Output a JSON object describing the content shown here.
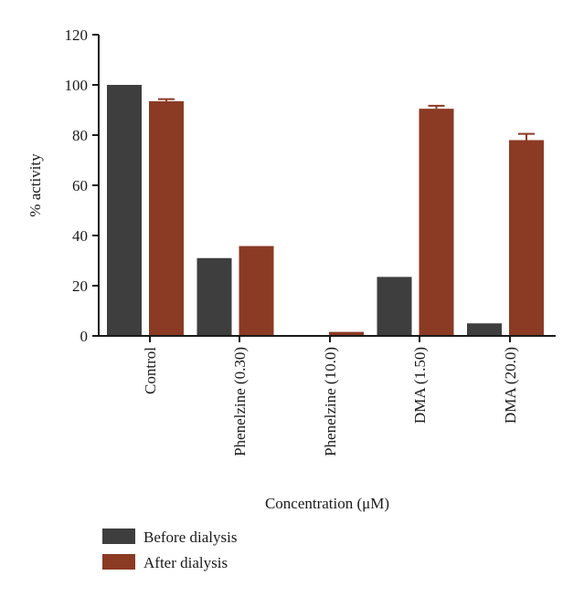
{
  "chart_data": {
    "type": "bar",
    "title": "",
    "xlabel": "Concentration (μM)",
    "ylabel": "% activity",
    "ylim": [
      0,
      120
    ],
    "yticks": [
      0,
      20,
      40,
      60,
      80,
      100,
      120
    ],
    "categories": [
      "Control",
      "Phenelzine (0.30)",
      "Phenelzine (10.0)",
      "DMA (1.50)",
      "DMA (20.0)"
    ],
    "series": [
      {
        "name": "Before dialysis",
        "color": "#3e3e3e",
        "values": [
          100,
          31,
          0.3,
          23.5,
          5
        ],
        "errors": [
          0,
          0,
          0,
          0,
          0
        ]
      },
      {
        "name": "After dialysis",
        "color": "#8b3a24",
        "values": [
          93.5,
          35.8,
          1.6,
          90.5,
          78
        ],
        "errors": [
          0.8,
          0,
          0,
          1.2,
          2.5
        ]
      }
    ],
    "grid": false,
    "legend_position": "bottom-left"
  }
}
